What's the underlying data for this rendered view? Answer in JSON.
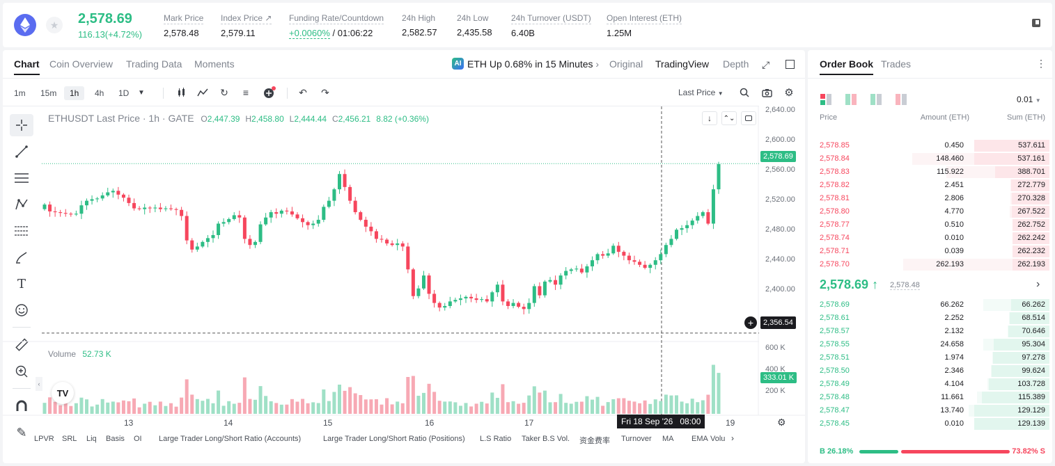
{
  "header": {
    "price": "2,578.69",
    "change": "116.13(+4.72%)",
    "stats": [
      {
        "label": "Mark Price",
        "value": "2,578.48"
      },
      {
        "label": "Index Price ↗",
        "value": "2,579.11"
      },
      {
        "label": "Funding Rate/Countdown",
        "value_green": "+0.0060%",
        "value": "/ 01:06:22"
      },
      {
        "label": "24h High",
        "value": "2,582.57"
      },
      {
        "label": "24h Low",
        "value": "2,435.58"
      },
      {
        "label": "24h Turnover (USDT)",
        "value": "6.40B"
      },
      {
        "label": "Open Interest (ETH)",
        "value": "1.25M"
      }
    ]
  },
  "chart_tabs": [
    "Chart",
    "Coin Overview",
    "Trading Data",
    "Moments"
  ],
  "ai_banner": "ETH Up 0.68% in 15 Minutes",
  "view_tabs": [
    "Original",
    "TradingView",
    "Depth"
  ],
  "timeframes": [
    "1m",
    "15m",
    "1h",
    "4h",
    "1D"
  ],
  "price_type": "Last Price",
  "legend": {
    "symbol": "ETHUSDT Last Price · 1h · GATE",
    "o_lbl": "O",
    "o": "2,447.39",
    "h_lbl": "H",
    "h": "2,458.80",
    "l_lbl": "L",
    "l": "2,444.44",
    "c_lbl": "C",
    "c": "2,456.21",
    "chg": "8.82 (+0.36%)"
  },
  "volume_legend": {
    "label": "Volume",
    "value": "52.73 K"
  },
  "price_axis": [
    "2,640.00",
    "2,600.00",
    "2,560.00",
    "2,520.00",
    "2,480.00",
    "2,440.00",
    "2,400.00"
  ],
  "volume_axis": [
    "600 K",
    "400 K",
    "200 K"
  ],
  "last_price_tag": "2,578.69",
  "crosshair_price": "2,356.54",
  "volume_tag": "333.01 K",
  "time_axis": [
    "13",
    "14",
    "15",
    "16",
    "17",
    "19"
  ],
  "crosshair_time": "Fri 18 Sep '26   08:00",
  "indicators": [
    "LPVR",
    "SRL",
    "Liq",
    "Basis",
    "OI",
    "Large Trader Long/Short Ratio (Accounts)",
    "Large Trader Long/Short Ratio (Positions)",
    "L.S Ratio",
    "Taker B.S Vol.",
    "资金费率",
    "Turnover",
    "MA",
    "EMA",
    "Volu"
  ],
  "orderbook": {
    "tabs": [
      "Order Book",
      "Trades"
    ],
    "precision": "0.01",
    "headers": [
      "Price",
      "Amount (ETH)",
      "Sum (ETH)"
    ],
    "asks": [
      [
        "2,578.85",
        "0.450",
        "537.611"
      ],
      [
        "2,578.84",
        "148.460",
        "537.161"
      ],
      [
        "2,578.83",
        "115.922",
        "388.701"
      ],
      [
        "2,578.82",
        "2.451",
        "272.779"
      ],
      [
        "2,578.81",
        "2.806",
        "270.328"
      ],
      [
        "2,578.80",
        "4.770",
        "267.522"
      ],
      [
        "2,578.77",
        "0.510",
        "262.752"
      ],
      [
        "2,578.74",
        "0.010",
        "262.242"
      ],
      [
        "2,578.71",
        "0.039",
        "262.232"
      ],
      [
        "2,578.70",
        "262.193",
        "262.193"
      ]
    ],
    "mid_price": "2,578.69 ↑",
    "mark": "2,578.48",
    "bids": [
      [
        "2,578.69",
        "66.262",
        "66.262"
      ],
      [
        "2,578.61",
        "2.252",
        "68.514"
      ],
      [
        "2,578.57",
        "2.132",
        "70.646"
      ],
      [
        "2,578.55",
        "24.658",
        "95.304"
      ],
      [
        "2,578.51",
        "1.974",
        "97.278"
      ],
      [
        "2,578.50",
        "2.346",
        "99.624"
      ],
      [
        "2,578.49",
        "4.104",
        "103.728"
      ],
      [
        "2,578.48",
        "11.661",
        "115.389"
      ],
      [
        "2,578.47",
        "13.740",
        "129.129"
      ],
      [
        "2,578.45",
        "0.010",
        "129.139"
      ]
    ],
    "buy_pct": "B 26.18%",
    "sell_pct": "73.82% S",
    "buy_ratio": 0.2618
  },
  "chart_data": {
    "type": "candlestick",
    "symbol": "ETHUSDT",
    "interval": "1h",
    "ylim": [
      2340,
      2650
    ],
    "closes": [
      2525,
      2516,
      2515,
      2514,
      2513,
      2512,
      2513,
      2524,
      2530,
      2532,
      2533,
      2537,
      2541,
      2543,
      2538,
      2534,
      2527,
      2520,
      2519,
      2521,
      2520,
      2521,
      2519,
      2520,
      2519,
      2518,
      2510,
      2478,
      2466,
      2470,
      2476,
      2481,
      2485,
      2500,
      2502,
      2506,
      2511,
      2508,
      2480,
      2472,
      2476,
      2499,
      2508,
      2515,
      2513,
      2517,
      2516,
      2512,
      2507,
      2502,
      2498,
      2500,
      2505,
      2522,
      2530,
      2545,
      2565,
      2548,
      2530,
      2515,
      2505,
      2496,
      2490,
      2480,
      2479,
      2474,
      2472,
      2474,
      2470,
      2440,
      2405,
      2415,
      2432,
      2408,
      2396,
      2390,
      2392,
      2398,
      2400,
      2402,
      2404,
      2402,
      2400,
      2401,
      2398,
      2410,
      2420,
      2398,
      2392,
      2396,
      2391,
      2388,
      2396,
      2418,
      2406,
      2424,
      2426,
      2420,
      2432,
      2438,
      2440,
      2441,
      2436,
      2444,
      2452,
      2460,
      2458,
      2461,
      2471,
      2463,
      2458,
      2452,
      2450,
      2446,
      2442,
      2446,
      2452,
      2460,
      2472,
      2480,
      2492,
      2494,
      2498,
      2504,
      2510,
      2515,
      2500,
      2545,
      2578
    ]
  },
  "colors": {
    "up": "#2dbd85",
    "down": "#f6465d"
  }
}
